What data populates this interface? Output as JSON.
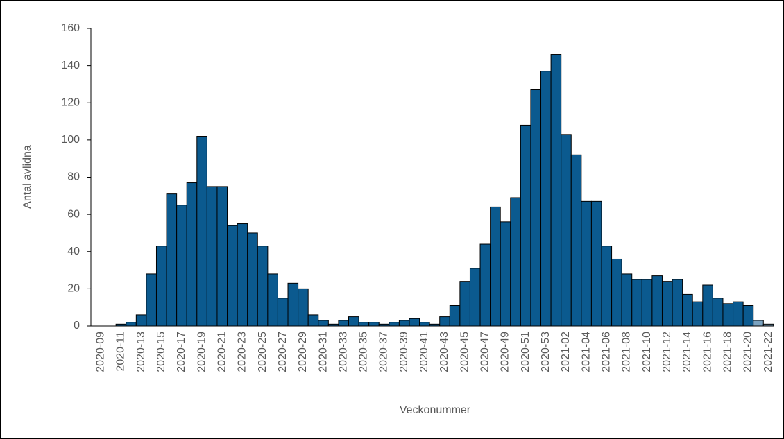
{
  "chart_data": {
    "type": "bar",
    "x_label": "Veckonummer",
    "y_label": "Antal avlidna",
    "categories": [
      "2020-09",
      null,
      "2020-11",
      null,
      "2020-13",
      null,
      "2020-15",
      null,
      "2020-17",
      null,
      "2020-19",
      null,
      "2020-21",
      null,
      "2020-23",
      null,
      "2020-25",
      null,
      "2020-27",
      null,
      "2020-29",
      null,
      "2020-31",
      null,
      "2020-33",
      null,
      "2020-35",
      null,
      "2020-37",
      null,
      "2020-39",
      null,
      "2020-41",
      null,
      "2020-43",
      null,
      "2020-45",
      null,
      "2020-47",
      null,
      "2020-49",
      null,
      "2020-51",
      null,
      "2020-53",
      null,
      "2021-02",
      null,
      "2021-04",
      null,
      "2021-06",
      null,
      "2021-08",
      null,
      "2021-10",
      null,
      "2021-12",
      null,
      "2021-14",
      null,
      "2021-16",
      null,
      "2021-18",
      null,
      "2021-20",
      null,
      "2021-22"
    ],
    "values": [
      0,
      0,
      1,
      2,
      6,
      28,
      43,
      71,
      65,
      77,
      102,
      75,
      75,
      54,
      55,
      50,
      43,
      28,
      15,
      23,
      20,
      6,
      3,
      1,
      3,
      5,
      2,
      2,
      1,
      2,
      3,
      4,
      2,
      1,
      5,
      11,
      24,
      31,
      44,
      64,
      56,
      69,
      108,
      127,
      137,
      146,
      103,
      92,
      67,
      67,
      43,
      36,
      28,
      25,
      25,
      27,
      24,
      25,
      17,
      13,
      22,
      15,
      12,
      13,
      11,
      3,
      1
    ],
    "colors": [
      "#0b5a8f",
      "#0b5a8f",
      "#0b5a8f",
      "#0b5a8f",
      "#0b5a8f",
      "#0b5a8f",
      "#0b5a8f",
      "#0b5a8f",
      "#0b5a8f",
      "#0b5a8f",
      "#0b5a8f",
      "#0b5a8f",
      "#0b5a8f",
      "#0b5a8f",
      "#0b5a8f",
      "#0b5a8f",
      "#0b5a8f",
      "#0b5a8f",
      "#0b5a8f",
      "#0b5a8f",
      "#0b5a8f",
      "#0b5a8f",
      "#0b5a8f",
      "#0b5a8f",
      "#0b5a8f",
      "#0b5a8f",
      "#0b5a8f",
      "#0b5a8f",
      "#0b5a8f",
      "#0b5a8f",
      "#0b5a8f",
      "#0b5a8f",
      "#0b5a8f",
      "#0b5a8f",
      "#0b5a8f",
      "#0b5a8f",
      "#0b5a8f",
      "#0b5a8f",
      "#0b5a8f",
      "#0b5a8f",
      "#0b5a8f",
      "#0b5a8f",
      "#0b5a8f",
      "#0b5a8f",
      "#0b5a8f",
      "#0b5a8f",
      "#0b5a8f",
      "#0b5a8f",
      "#0b5a8f",
      "#0b5a8f",
      "#0b5a8f",
      "#0b5a8f",
      "#0b5a8f",
      "#0b5a8f",
      "#0b5a8f",
      "#0b5a8f",
      "#0b5a8f",
      "#0b5a8f",
      "#0b5a8f",
      "#0b5a8f",
      "#0b5a8f",
      "#0b5a8f",
      "#0b5a8f",
      "#0b5a8f",
      "#0b5a8f",
      "#7ba3c0",
      "#7ba3c0"
    ],
    "ylim": [
      0,
      160
    ],
    "yticks": [
      0,
      20,
      40,
      60,
      80,
      100,
      120,
      140,
      160
    ],
    "grid": false
  }
}
